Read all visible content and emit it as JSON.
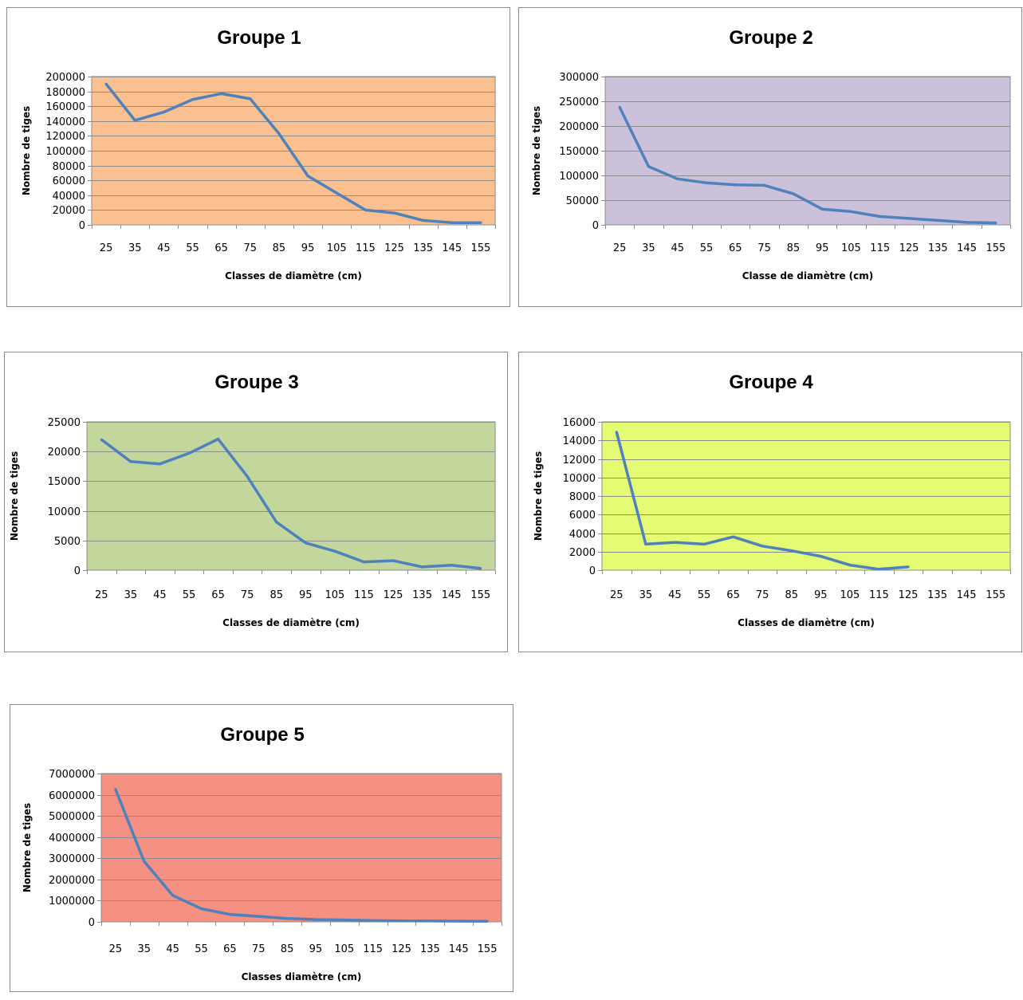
{
  "charts": [
    {
      "type": "line",
      "title": "Groupe 1",
      "xlabel": "Classes de diamètre (cm)",
      "ylabel": "Nombre de tiges",
      "plot_bg": "#fac090",
      "line_color": "#4f81bd",
      "ylim": [
        0,
        200000
      ],
      "ytick_step": 20000,
      "categories": [
        "25",
        "35",
        "45",
        "55",
        "65",
        "75",
        "85",
        "95",
        "105",
        "115",
        "125",
        "135",
        "145",
        "155"
      ],
      "series": [
        {
          "values": [
            190000,
            141000,
            152000,
            169000,
            177000,
            170000,
            123000,
            66000,
            43000,
            20000,
            16000,
            6000,
            3000,
            3000
          ]
        }
      ]
    },
    {
      "type": "line",
      "title": "Groupe 2",
      "xlabel": "Classe de diamètre (cm)",
      "ylabel": "Nombre de tiges",
      "plot_bg": "#ccc1da",
      "line_color": "#4f81bd",
      "ylim": [
        0,
        300000
      ],
      "ytick_step": 50000,
      "categories": [
        "25",
        "35",
        "45",
        "55",
        "65",
        "75",
        "85",
        "95",
        "105",
        "115",
        "125",
        "135",
        "145",
        "155"
      ],
      "series": [
        {
          "values": [
            238000,
            118000,
            93000,
            85000,
            81000,
            80000,
            63000,
            32000,
            27000,
            17000,
            13000,
            9000,
            5000,
            4000
          ]
        }
      ]
    },
    {
      "type": "line",
      "title": "Groupe 3",
      "xlabel": "Classes de diamètre (cm)",
      "ylabel": "Nombre de tiges",
      "plot_bg": "#c3d69b",
      "line_color": "#4f81bd",
      "ylim": [
        0,
        25000
      ],
      "ytick_step": 5000,
      "categories": [
        "25",
        "35",
        "45",
        "55",
        "65",
        "75",
        "85",
        "95",
        "105",
        "115",
        "125",
        "135",
        "145",
        "155"
      ],
      "series": [
        {
          "values": [
            22000,
            18300,
            17900,
            19700,
            22100,
            15800,
            8100,
            4600,
            3200,
            1400,
            1600,
            550,
            850,
            300
          ]
        }
      ]
    },
    {
      "type": "line",
      "title": "Groupe 4",
      "xlabel": "Classes de diamètre (cm)",
      "ylabel": "Nombre de tiges",
      "plot_bg": "#e6fb74",
      "line_color": "#4f81bd",
      "ylim": [
        0,
        16000
      ],
      "ytick_step": 2000,
      "categories": [
        "25",
        "35",
        "45",
        "55",
        "65",
        "75",
        "85",
        "95",
        "105",
        "115",
        "125",
        "135",
        "145",
        "155"
      ],
      "series": [
        {
          "values": [
            14900,
            2800,
            3000,
            2800,
            3600,
            2600,
            2100,
            1500,
            550,
            100,
            350,
            null,
            null,
            null
          ]
        }
      ]
    },
    {
      "type": "line",
      "title": "Groupe 5",
      "xlabel": "Classes diamètre (cm)",
      "ylabel": "Nombre de tiges",
      "plot_bg": "#f59183",
      "line_color": "#4f81bd",
      "ylim": [
        0,
        7000000
      ],
      "ytick_step": 1000000,
      "categories": [
        "25",
        "35",
        "45",
        "55",
        "65",
        "75",
        "85",
        "95",
        "105",
        "115",
        "125",
        "135",
        "145",
        "155"
      ],
      "series": [
        {
          "values": [
            6250000,
            2850000,
            1250000,
            620000,
            350000,
            260000,
            160000,
            110000,
            90000,
            60000,
            45000,
            40000,
            35000,
            30000
          ]
        }
      ]
    }
  ]
}
